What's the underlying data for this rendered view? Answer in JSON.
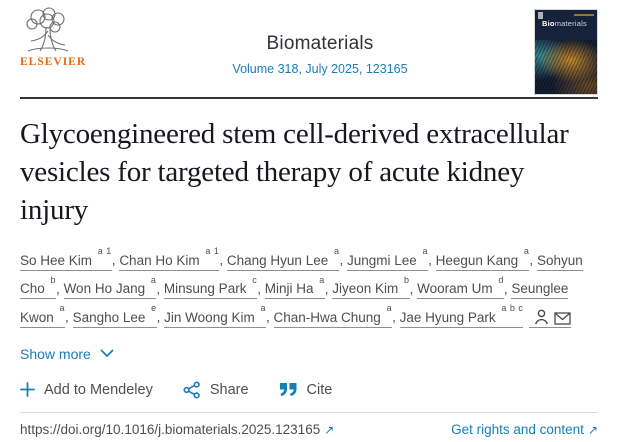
{
  "header": {
    "publisher_wordmark": "ELSEVIER",
    "journal_name": "Biomaterials",
    "volume_line": "Volume 318, July 2025, 123165",
    "cover": {
      "title_bold": "Bio",
      "title_rest": "materials"
    }
  },
  "article": {
    "title": "Glycoengineered stem cell-derived extracellular vesicles for targeted therapy of acute kidney injury",
    "show_more_label": "Show more"
  },
  "authors": [
    {
      "name": "So Hee Kim",
      "sup": "a 1"
    },
    {
      "name": "Chan Ho Kim",
      "sup": "a 1"
    },
    {
      "name": "Chang Hyun Lee",
      "sup": "a"
    },
    {
      "name": "Jungmi Lee",
      "sup": "a"
    },
    {
      "name": "Heegun Kang",
      "sup": "a"
    },
    {
      "name": "Sohyun Cho",
      "sup": "b"
    },
    {
      "name": "Won Ho Jang",
      "sup": "a"
    },
    {
      "name": "Minsung Park",
      "sup": "c"
    },
    {
      "name": "Minji Ha",
      "sup": "a"
    },
    {
      "name": "Jiyeon Kim",
      "sup": "b"
    },
    {
      "name": "Wooram Um",
      "sup": "d"
    },
    {
      "name": "Seunglee Kwon",
      "sup": "a"
    },
    {
      "name": "Sangho Lee",
      "sup": "e"
    },
    {
      "name": "Jin Woong Kim",
      "sup": "a"
    },
    {
      "name": "Chan-Hwa Chung",
      "sup": "a"
    },
    {
      "name": "Jae Hyung Park",
      "sup": "a b c"
    }
  ],
  "actions": {
    "mendeley_label": "Add to Mendeley",
    "share_label": "Share",
    "cite_label": "Cite"
  },
  "footer": {
    "doi": "https://doi.org/10.1016/j.biomaterials.2025.123165",
    "rights_label": "Get rights and content",
    "external_arrow": "↗"
  },
  "colors": {
    "link_blue": "#1a7db6",
    "elsevier_orange": "#e8680f",
    "title_text": "#17171f",
    "body_text": "#4f4f4f"
  }
}
